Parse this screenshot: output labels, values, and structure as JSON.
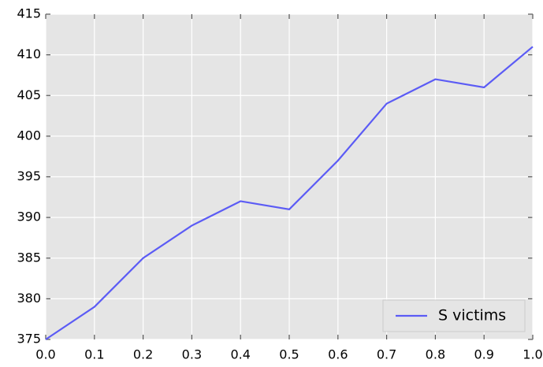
{
  "chart_data": {
    "type": "line",
    "x": [
      0,
      0.1,
      0.2,
      0.3,
      0.4,
      0.5,
      0.6,
      0.7,
      0.8,
      0.9,
      1.0
    ],
    "series": [
      {
        "name": "S victims",
        "color": "#5b5bf5",
        "values": [
          375,
          379,
          385,
          389,
          392,
          391,
          397,
          404,
          407,
          406,
          411
        ]
      }
    ],
    "xlim": [
      0,
      1
    ],
    "xticks": [
      {
        "value": 0,
        "label": "0.0"
      },
      0.1,
      0.2,
      0.3,
      0.4,
      0.5,
      0.6,
      0.7,
      0.8,
      0.9,
      {
        "value": 1,
        "label": "1.0"
      }
    ],
    "ylim": [
      375,
      415
    ],
    "yticks": [
      375,
      380,
      385,
      390,
      395,
      400,
      405,
      410,
      415
    ],
    "grid": true,
    "legend": "lower right"
  }
}
